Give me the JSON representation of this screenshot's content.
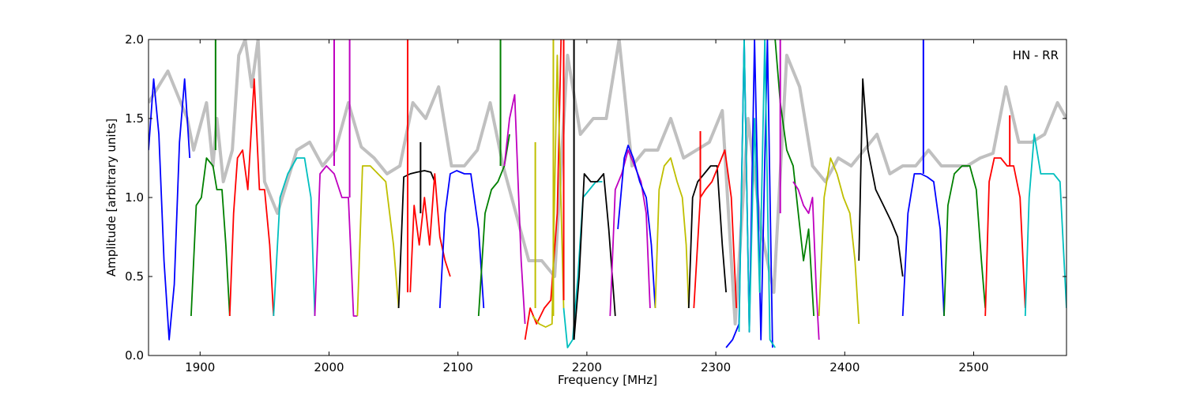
{
  "chart_data": {
    "type": "line",
    "annotation": "HN - RR",
    "xlabel": "Frequency [MHz]",
    "ylabel": "Amplitude [arbitrary units]",
    "xlim": [
      1860,
      2572
    ],
    "ylim": [
      0.0,
      2.0
    ],
    "xticks": [
      1900,
      2000,
      2100,
      2200,
      2300,
      2400,
      2500
    ],
    "yticks": [
      0.0,
      0.5,
      1.0,
      1.5,
      2.0
    ],
    "ytick_labels": [
      "0.0",
      "0.5",
      "1.0",
      "1.5",
      "2.0"
    ],
    "grid": false,
    "colors": {
      "background_trace": "#c0c0c0",
      "blue": "#0000ff",
      "green": "#008000",
      "red": "#ff0000",
      "cyan": "#00bfbf",
      "magenta": "#bf00bf",
      "olive": "#bfbf00",
      "black": "#000000"
    },
    "background": {
      "x": [
        1860,
        1875,
        1890,
        1895,
        1905,
        1910,
        1913,
        1918,
        1925,
        1930,
        1935,
        1940,
        1945,
        1950,
        1955,
        1960,
        1975,
        1985,
        1995,
        2005,
        2015,
        2025,
        2035,
        2045,
        2055,
        2065,
        2075,
        2085,
        2095,
        2105,
        2115,
        2125,
        2135,
        2145,
        2155,
        2165,
        2175,
        2185,
        2195,
        2205,
        2215,
        2225,
        2235,
        2245,
        2255,
        2265,
        2275,
        2285,
        2295,
        2305,
        2315,
        2325,
        2335,
        2345,
        2355,
        2365,
        2375,
        2385,
        2395,
        2405,
        2415,
        2425,
        2435,
        2445,
        2455,
        2465,
        2475,
        2485,
        2495,
        2505,
        2515,
        2525,
        2535,
        2545,
        2555,
        2565,
        2572
      ],
      "y": [
        1.6,
        1.8,
        1.5,
        1.3,
        1.6,
        1.2,
        1.5,
        1.1,
        1.3,
        1.9,
        2.0,
        1.7,
        2.0,
        1.1,
        1.0,
        0.9,
        1.3,
        1.35,
        1.2,
        1.3,
        1.6,
        1.32,
        1.25,
        1.15,
        1.2,
        1.6,
        1.5,
        1.7,
        1.2,
        1.2,
        1.3,
        1.6,
        1.2,
        0.9,
        0.6,
        0.6,
        0.5,
        1.9,
        1.4,
        1.5,
        1.5,
        2.0,
        1.2,
        1.3,
        1.3,
        1.5,
        1.25,
        1.3,
        1.35,
        1.55,
        0.2,
        1.5,
        0.8,
        0.4,
        1.9,
        1.7,
        1.2,
        1.1,
        1.25,
        1.2,
        1.3,
        1.4,
        1.15,
        1.2,
        1.2,
        1.3,
        1.2,
        1.2,
        1.2,
        1.25,
        1.28,
        1.7,
        1.35,
        1.35,
        1.4,
        1.6,
        1.5
      ]
    },
    "series": [
      {
        "color": "blue",
        "x": [
          1860,
          1864,
          1868,
          1872,
          1876,
          1880,
          1884,
          1888,
          1890,
          1892
        ],
        "y": [
          1.3,
          1.75,
          1.4,
          0.6,
          0.1,
          0.45,
          1.35,
          1.75,
          1.5,
          1.25
        ]
      },
      {
        "color": "green",
        "x": [
          1893,
          1897,
          1901,
          1905,
          1910,
          1913,
          1917,
          1920,
          1923
        ],
        "y": [
          0.25,
          0.95,
          1.0,
          1.25,
          1.2,
          1.05,
          1.05,
          0.7,
          0.25
        ]
      },
      {
        "color": "red",
        "x": [
          1923,
          1926,
          1929,
          1933,
          1937,
          1942,
          1946,
          1950,
          1954,
          1957
        ],
        "y": [
          0.25,
          0.9,
          1.25,
          1.3,
          1.05,
          1.75,
          1.05,
          1.05,
          0.7,
          0.25
        ]
      },
      {
        "color": "cyan",
        "x": [
          1957,
          1962,
          1968,
          1975,
          1981,
          1986,
          1989
        ],
        "y": [
          0.25,
          1.0,
          1.15,
          1.25,
          1.25,
          1.0,
          0.25
        ]
      },
      {
        "color": "magenta",
        "x": [
          1989,
          1993,
          1998,
          2004,
          2010,
          2015,
          2019,
          2022
        ],
        "y": [
          0.25,
          1.15,
          1.2,
          1.15,
          1.0,
          1.0,
          0.25,
          0.25
        ]
      },
      {
        "color": "olive",
        "x": [
          2022,
          2026,
          2032,
          2038,
          2044,
          2050,
          2054
        ],
        "y": [
          0.25,
          1.2,
          1.2,
          1.15,
          1.1,
          0.7,
          0.3
        ]
      },
      {
        "color": "black",
        "x": [
          2054,
          2058,
          2063,
          2068,
          2074,
          2079,
          2082
        ],
        "y": [
          0.3,
          1.13,
          1.15,
          1.16,
          1.17,
          1.16,
          1.1
        ]
      },
      {
        "color": "red",
        "x": [
          2063,
          2066,
          2070,
          2074,
          2078,
          2082,
          2086,
          2090,
          2094
        ],
        "y": [
          0.4,
          0.95,
          0.7,
          1.0,
          0.7,
          1.15,
          0.75,
          0.6,
          0.5
        ]
      },
      {
        "color": "blue",
        "x": [
          2086,
          2090,
          2094,
          2099,
          2105,
          2110,
          2116,
          2120
        ],
        "y": [
          0.3,
          0.9,
          1.15,
          1.17,
          1.15,
          1.15,
          0.8,
          0.3
        ]
      },
      {
        "color": "green",
        "x": [
          2116,
          2121,
          2126,
          2131,
          2136,
          2140
        ],
        "y": [
          0.25,
          0.9,
          1.05,
          1.1,
          1.2,
          1.4
        ]
      },
      {
        "color": "magenta",
        "x": [
          2136,
          2140,
          2144,
          2149,
          2152
        ],
        "y": [
          1.2,
          1.5,
          1.65,
          0.6,
          0.2
        ]
      },
      {
        "color": "red",
        "x": [
          2152,
          2156,
          2161,
          2167,
          2172,
          2177,
          2180
        ],
        "y": [
          0.1,
          0.3,
          0.2,
          0.3,
          0.35,
          0.9,
          2.0
        ]
      },
      {
        "color": "olive",
        "x": [
          2158,
          2163,
          2168,
          2173,
          2177,
          2182
        ],
        "y": [
          0.25,
          0.2,
          0.18,
          0.2,
          1.9,
          0.3
        ]
      },
      {
        "color": "cyan",
        "x": [
          2182,
          2185,
          2189,
          2193,
          2197,
          2202,
          2207,
          2212
        ],
        "y": [
          0.3,
          0.05,
          0.1,
          0.5,
          1.0,
          1.05,
          1.1,
          1.1
        ]
      },
      {
        "color": "black",
        "x": [
          2190,
          2194,
          2198,
          2203,
          2208,
          2213,
          2217,
          2222
        ],
        "y": [
          0.1,
          0.5,
          1.15,
          1.1,
          1.1,
          1.15,
          0.8,
          0.25
        ]
      },
      {
        "color": "magenta",
        "x": [
          2218,
          2222,
          2227,
          2232,
          2237,
          2242,
          2246,
          2249
        ],
        "y": [
          0.25,
          1.05,
          1.15,
          1.3,
          1.2,
          1.1,
          0.9,
          0.3
        ]
      },
      {
        "color": "blue",
        "x": [
          2224,
          2229,
          2232,
          2236,
          2241,
          2246,
          2250,
          2253
        ],
        "y": [
          0.8,
          1.25,
          1.33,
          1.25,
          1.1,
          1.0,
          0.7,
          0.3
        ]
      },
      {
        "color": "olive",
        "x": [
          2253,
          2256,
          2260,
          2265,
          2270,
          2274,
          2277,
          2279
        ],
        "y": [
          0.3,
          1.05,
          1.2,
          1.25,
          1.1,
          1.0,
          0.7,
          0.3
        ]
      },
      {
        "color": "black",
        "x": [
          2279,
          2282,
          2286,
          2291,
          2296,
          2301,
          2305,
          2308
        ],
        "y": [
          0.3,
          1.0,
          1.1,
          1.15,
          1.2,
          1.2,
          0.7,
          0.4
        ]
      },
      {
        "color": "red",
        "x": [
          2283,
          2288,
          2292,
          2297,
          2302,
          2307,
          2312,
          2316
        ],
        "y": [
          0.3,
          1.0,
          1.05,
          1.1,
          1.2,
          1.3,
          1.0,
          0.3
        ]
      },
      {
        "color": "blue",
        "x": [
          2308,
          2313,
          2318,
          2322,
          2326,
          2330,
          2335,
          2340,
          2344
        ],
        "y": [
          0.05,
          0.1,
          0.2,
          2.0,
          0.15,
          2.0,
          0.1,
          2.0,
          0.05
        ]
      },
      {
        "color": "cyan",
        "x": [
          2318,
          2322,
          2326,
          2330,
          2334,
          2338,
          2342,
          2346
        ],
        "y": [
          0.15,
          2.0,
          0.15,
          1.5,
          0.4,
          2.0,
          0.1,
          0.05
        ]
      },
      {
        "color": "green",
        "x": [
          2346,
          2350,
          2355,
          2360,
          2364,
          2368,
          2372,
          2376
        ],
        "y": [
          2.0,
          1.6,
          1.3,
          1.2,
          0.9,
          0.6,
          0.8,
          0.25
        ]
      },
      {
        "color": "magenta",
        "x": [
          2360,
          2364,
          2368,
          2372,
          2375,
          2378,
          2380
        ],
        "y": [
          1.1,
          1.05,
          0.95,
          0.9,
          1.0,
          0.4,
          0.1
        ]
      },
      {
        "color": "olive",
        "x": [
          2380,
          2384,
          2389,
          2394,
          2399,
          2404,
          2408,
          2411
        ],
        "y": [
          0.25,
          1.0,
          1.25,
          1.15,
          1.0,
          0.9,
          0.6,
          0.2
        ]
      },
      {
        "color": "black",
        "x": [
          2411,
          2414,
          2418,
          2424,
          2430,
          2436,
          2441,
          2445
        ],
        "y": [
          0.6,
          1.75,
          1.3,
          1.05,
          0.95,
          0.85,
          0.75,
          0.5
        ]
      },
      {
        "color": "blue",
        "x": [
          2445,
          2449,
          2454,
          2459,
          2464,
          2469,
          2474,
          2477
        ],
        "y": [
          0.25,
          0.9,
          1.15,
          1.15,
          1.13,
          1.1,
          0.8,
          0.25
        ]
      },
      {
        "color": "green",
        "x": [
          2477,
          2480,
          2485,
          2491,
          2497,
          2502,
          2506,
          2509
        ],
        "y": [
          0.25,
          0.95,
          1.15,
          1.2,
          1.2,
          1.05,
          0.6,
          0.3
        ]
      },
      {
        "color": "red",
        "x": [
          2509,
          2512,
          2516,
          2521,
          2526,
          2531,
          2536,
          2540
        ],
        "y": [
          0.25,
          1.1,
          1.25,
          1.25,
          1.2,
          1.2,
          1.0,
          0.3
        ]
      },
      {
        "color": "cyan",
        "x": [
          2540,
          2543,
          2547,
          2552,
          2557,
          2562,
          2567,
          2572
        ],
        "y": [
          0.25,
          1.0,
          1.4,
          1.15,
          1.15,
          1.15,
          1.1,
          0.3
        ]
      }
    ],
    "spikes": [
      {
        "color": "blue",
        "x": 2461,
        "y0": 1.15,
        "y1": 2.0
      },
      {
        "color": "green",
        "x": 1912,
        "y0": 1.3,
        "y1": 2.0
      },
      {
        "color": "magenta",
        "x": 2004,
        "y0": 1.2,
        "y1": 2.0
      },
      {
        "color": "magenta",
        "x": 2016,
        "y0": 1.0,
        "y1": 2.0
      },
      {
        "color": "red",
        "x": 2061,
        "y0": 0.4,
        "y1": 2.0
      },
      {
        "color": "black",
        "x": 2071,
        "y0": 0.9,
        "y1": 1.35
      },
      {
        "color": "green",
        "x": 2133,
        "y0": 1.2,
        "y1": 2.0
      },
      {
        "color": "olive",
        "x": 2160,
        "y0": 0.3,
        "y1": 1.35
      },
      {
        "color": "olive",
        "x": 2174,
        "y0": 0.25,
        "y1": 2.0
      },
      {
        "color": "red",
        "x": 2182,
        "y0": 0.35,
        "y1": 2.0
      },
      {
        "color": "black",
        "x": 2190,
        "y0": 0.1,
        "y1": 2.0
      },
      {
        "color": "magenta",
        "x": 2350,
        "y0": 0.9,
        "y1": 2.0
      },
      {
        "color": "red",
        "x": 2528,
        "y0": 1.2,
        "y1": 1.52
      },
      {
        "color": "red",
        "x": 2288,
        "y0": 1.0,
        "y1": 1.42
      }
    ]
  }
}
